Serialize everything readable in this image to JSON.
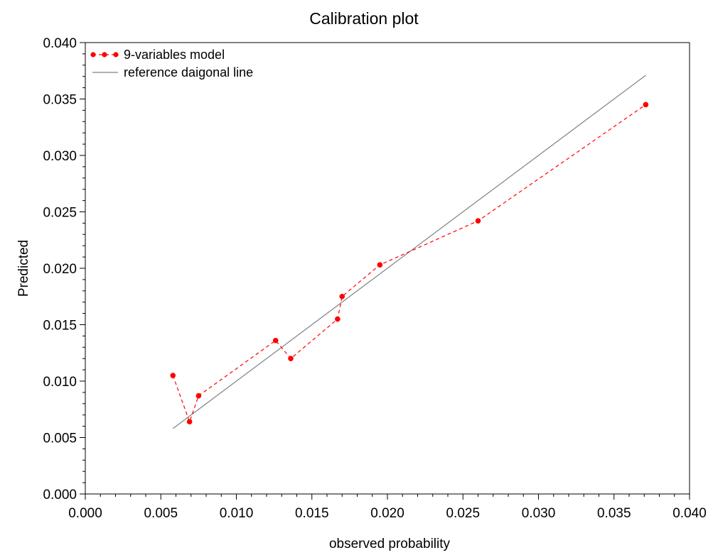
{
  "chart_data": {
    "type": "scatter",
    "title": "Calibration plot",
    "xlabel": "observed probability",
    "ylabel": "Predicted",
    "xlim": [
      0.0,
      0.04
    ],
    "ylim": [
      0.0,
      0.04
    ],
    "x_ticks": [
      "0.000",
      "0.005",
      "0.010",
      "0.015",
      "0.020",
      "0.025",
      "0.030",
      "0.035",
      "0.040"
    ],
    "y_ticks": [
      "0.000",
      "0.005",
      "0.010",
      "0.015",
      "0.020",
      "0.025",
      "0.030",
      "0.035",
      "0.040"
    ],
    "grid": false,
    "legend_position": "top-left",
    "series": [
      {
        "name": "9-variables model",
        "style": "dashed-line-with-markers",
        "color": "#ff0000",
        "x": [
          0.0058,
          0.0069,
          0.0075,
          0.0126,
          0.0136,
          0.0167,
          0.017,
          0.0195,
          0.026,
          0.0371
        ],
        "y": [
          0.0105,
          0.0064,
          0.0087,
          0.0136,
          0.012,
          0.0155,
          0.0175,
          0.0203,
          0.0242,
          0.0345
        ]
      },
      {
        "name": "reference daigonal line",
        "style": "solid-line",
        "color": "#808080",
        "x": [
          0.0058,
          0.0371
        ],
        "y": [
          0.0058,
          0.0371
        ]
      }
    ]
  }
}
